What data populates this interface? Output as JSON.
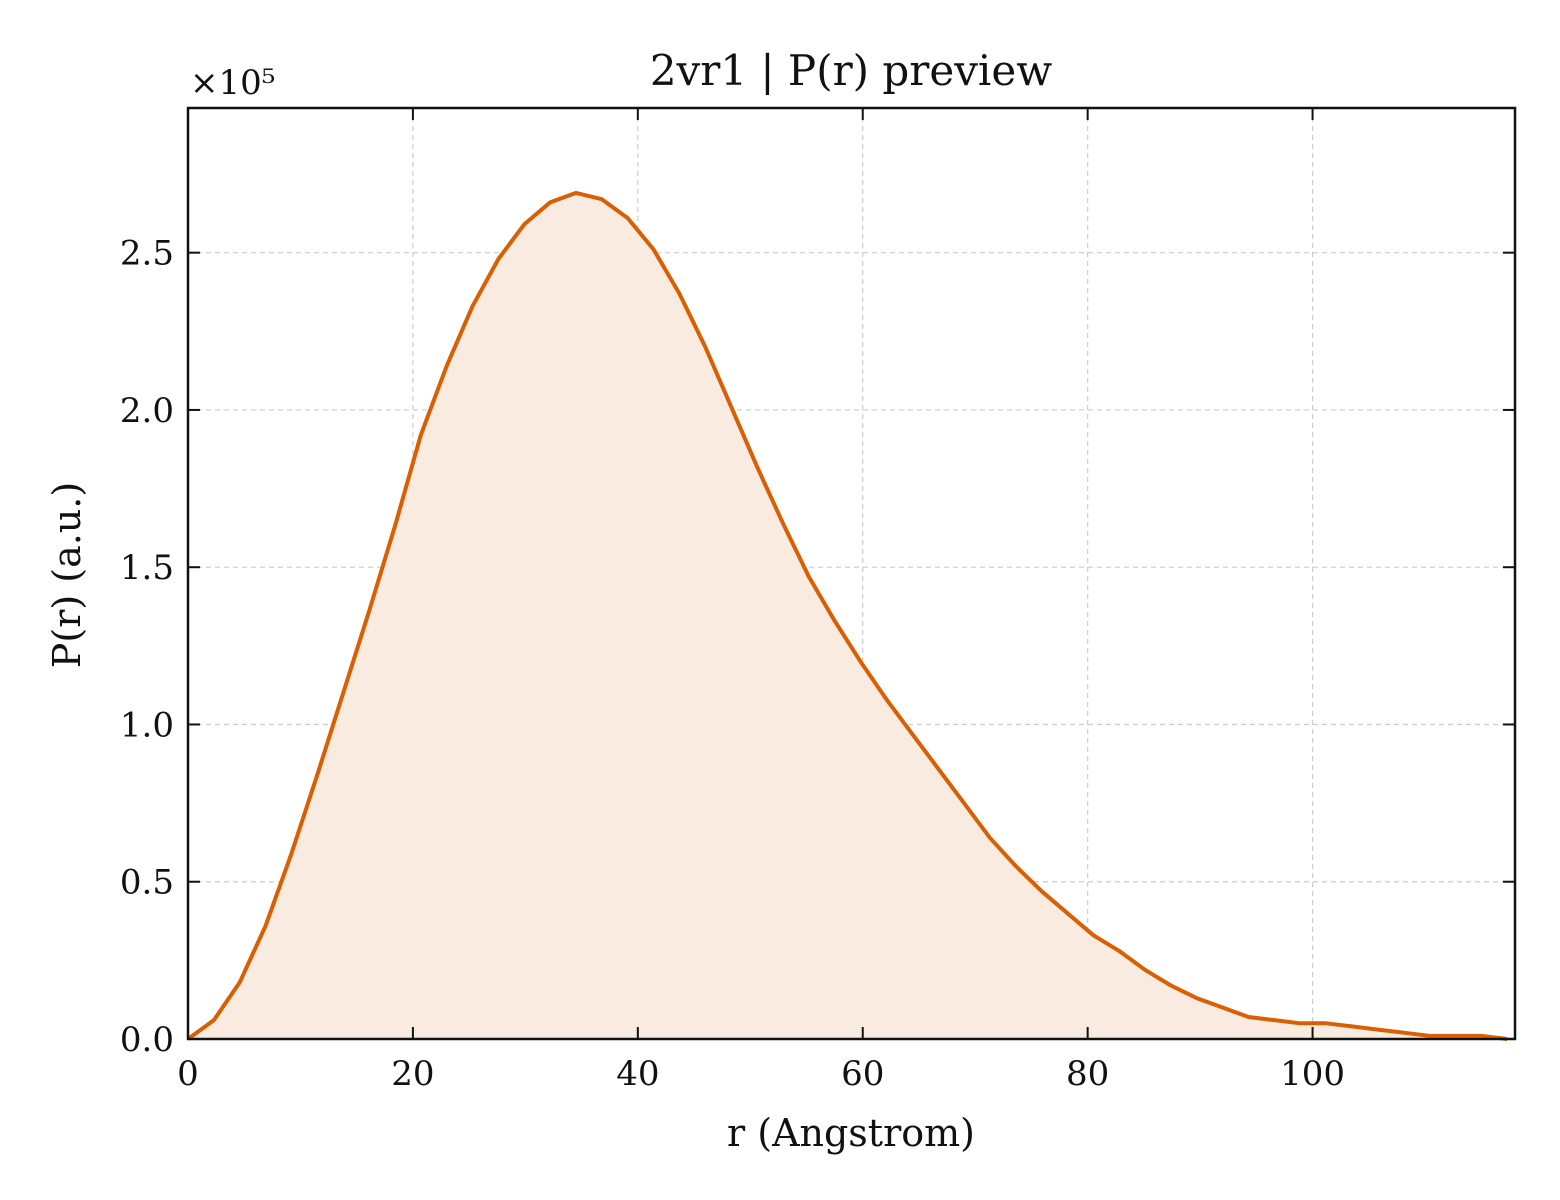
{
  "chart_data": {
    "type": "area",
    "title": "2vr1 | P(r) preview",
    "xlabel": "r (Angstrom)",
    "ylabel": "P(r) (a.u.)",
    "y_multiplier": "×10⁵",
    "xlim": [
      0,
      118
    ],
    "ylim": [
      0,
      2.96
    ],
    "x_ticks": [
      0,
      20,
      40,
      60,
      80,
      100
    ],
    "x_tick_labels": [
      "0",
      "20",
      "40",
      "60",
      "80",
      "100"
    ],
    "y_ticks": [
      0,
      0.5,
      1.0,
      1.5,
      2.0,
      2.5
    ],
    "y_tick_labels": [
      "0.0",
      "0.5",
      "1.0",
      "1.5",
      "2.0",
      "2.5"
    ],
    "grid": true,
    "line_color": "#d95f02",
    "fill_color": "#f9ebe0",
    "series": [
      {
        "x": [
          0,
          2.3,
          4.6,
          6.9,
          9.2,
          11.5,
          13.8,
          16.1,
          18.4,
          20.7,
          23.0,
          25.3,
          27.6,
          29.9,
          32.2,
          34.5,
          36.8,
          39.1,
          41.4,
          43.7,
          46.0,
          48.3,
          50.6,
          52.9,
          55.2,
          57.5,
          59.8,
          62.1,
          64.4,
          66.7,
          69.0,
          71.3,
          73.6,
          75.9,
          78.2,
          80.5,
          82.8,
          85.1,
          87.4,
          89.7,
          92.0,
          94.3,
          96.6,
          98.9,
          101.2,
          103.5,
          105.8,
          108.1,
          110.4,
          112.7,
          115.0,
          117.3
        ],
        "y": [
          0.0,
          0.06,
          0.18,
          0.36,
          0.59,
          0.84,
          1.1,
          1.36,
          1.63,
          1.92,
          2.14,
          2.33,
          2.48,
          2.59,
          2.66,
          2.69,
          2.67,
          2.61,
          2.51,
          2.37,
          2.2,
          2.01,
          1.82,
          1.64,
          1.47,
          1.33,
          1.2,
          1.08,
          0.97,
          0.86,
          0.75,
          0.64,
          0.55,
          0.47,
          0.4,
          0.33,
          0.28,
          0.22,
          0.17,
          0.13,
          0.1,
          0.07,
          0.06,
          0.05,
          0.05,
          0.04,
          0.03,
          0.02,
          0.01,
          0.01,
          0.01,
          0.0
        ]
      }
    ]
  }
}
